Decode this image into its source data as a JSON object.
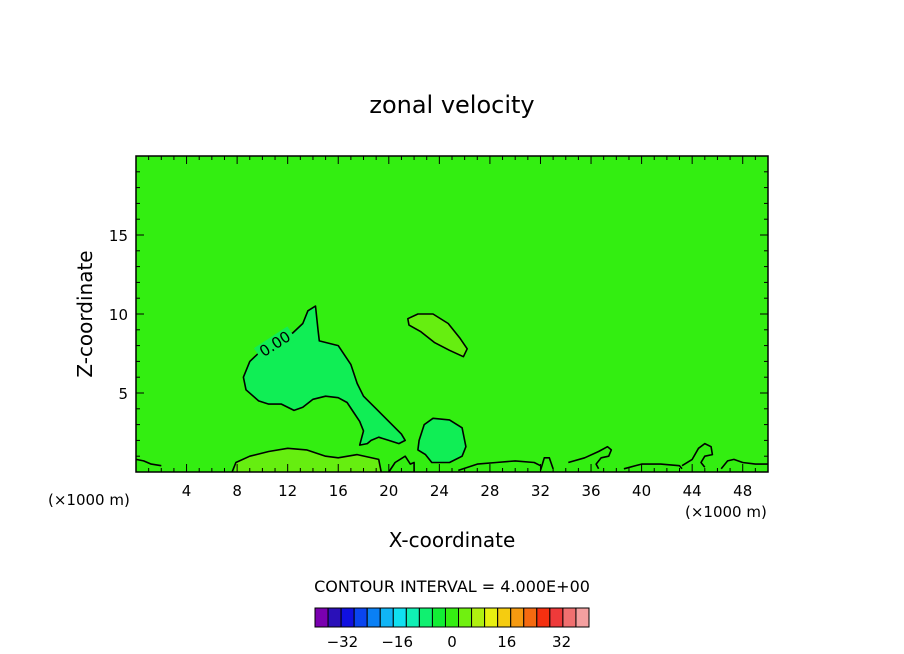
{
  "chart_data": {
    "type": "contour",
    "title": "zonal velocity",
    "xlabel": "X-coordinate",
    "ylabel": "Z-coordinate",
    "x_unit_label": "(×1000 m)",
    "y_unit_label": "(×1000 m)",
    "xlim": [
      0,
      50
    ],
    "ylim": [
      0,
      20
    ],
    "x_ticks": [
      4,
      8,
      12,
      16,
      20,
      24,
      28,
      32,
      36,
      40,
      44,
      48
    ],
    "y_ticks": [
      5,
      10,
      15
    ],
    "contour_label": "0.00",
    "contour_interval_text": "CONTOUR INTERVAL = 4.000E+00",
    "background_color": "#33ee11",
    "colorbar": {
      "tick_labels": [
        "−32",
        "−16",
        "0",
        "16",
        "32"
      ],
      "tick_values": [
        -32,
        -16,
        0,
        16,
        32
      ],
      "min": -40,
      "max": 40,
      "colors": [
        "#7a00b0",
        "#2a10b8",
        "#1010e0",
        "#0a45f0",
        "#0a80f5",
        "#10b5f5",
        "#10e0f0",
        "#10f0b5",
        "#10f070",
        "#12ee35",
        "#35ee12",
        "#70f010",
        "#b0f010",
        "#e8f010",
        "#f5cc10",
        "#f59a10",
        "#f56a10",
        "#f53010",
        "#ee3a3a",
        "#f07070",
        "#f4a0a0"
      ]
    },
    "regions": [
      {
        "name": "negative-lobe-center",
        "value_band": [
          -4,
          0
        ],
        "color": "#10ee55",
        "polygon": [
          [
            9.0,
            7.0
          ],
          [
            9.8,
            7.6
          ],
          [
            11.0,
            8.2
          ],
          [
            12.4,
            8.8
          ],
          [
            13.2,
            9.4
          ],
          [
            13.6,
            10.2
          ],
          [
            14.2,
            10.5
          ],
          [
            14.4,
            9.0
          ],
          [
            14.5,
            8.3
          ],
          [
            16.0,
            8.0
          ],
          [
            17.0,
            6.8
          ],
          [
            17.5,
            5.6
          ],
          [
            18.0,
            4.8
          ],
          [
            19.0,
            4.0
          ],
          [
            20.0,
            3.2
          ],
          [
            21.0,
            2.4
          ],
          [
            21.3,
            2.0
          ],
          [
            20.8,
            1.8
          ],
          [
            20.0,
            2.0
          ],
          [
            19.2,
            2.2
          ],
          [
            18.6,
            2.0
          ],
          [
            18.3,
            1.8
          ],
          [
            17.7,
            1.7
          ],
          [
            18.0,
            2.6
          ],
          [
            17.7,
            3.2
          ],
          [
            17.2,
            3.8
          ],
          [
            16.7,
            4.4
          ],
          [
            16.0,
            4.7
          ],
          [
            15.0,
            4.8
          ],
          [
            14.0,
            4.6
          ],
          [
            13.2,
            4.1
          ],
          [
            12.5,
            3.9
          ],
          [
            11.5,
            4.3
          ],
          [
            10.5,
            4.3
          ],
          [
            9.7,
            4.5
          ],
          [
            8.7,
            5.2
          ],
          [
            8.5,
            6.0
          ]
        ]
      },
      {
        "name": "negative-lobe-small",
        "value_band": [
          -4,
          0
        ],
        "color": "#10ee55",
        "polygon": [
          [
            22.4,
            2.0
          ],
          [
            22.8,
            3.0
          ],
          [
            23.5,
            3.4
          ],
          [
            24.8,
            3.3
          ],
          [
            25.8,
            2.8
          ],
          [
            26.1,
            1.6
          ],
          [
            25.8,
            1.0
          ],
          [
            24.8,
            0.6
          ],
          [
            23.4,
            0.6
          ],
          [
            22.9,
            1.1
          ],
          [
            22.3,
            1.4
          ]
        ]
      },
      {
        "name": "positive-blob",
        "value_band": [
          0,
          4
        ],
        "color": "#66ee10",
        "polygon": [
          [
            21.5,
            9.7
          ],
          [
            22.3,
            10.0
          ],
          [
            23.5,
            10.0
          ],
          [
            24.7,
            9.4
          ],
          [
            25.6,
            8.5
          ],
          [
            26.2,
            7.8
          ],
          [
            25.9,
            7.3
          ],
          [
            24.8,
            7.7
          ],
          [
            23.6,
            8.2
          ],
          [
            22.5,
            8.9
          ],
          [
            21.6,
            9.3
          ]
        ]
      },
      {
        "name": "positive-base",
        "value_band": [
          0,
          4
        ],
        "color": "#66ee10",
        "polygon": [
          [
            7.8,
            0
          ],
          [
            7.9,
            0.6
          ],
          [
            9.0,
            1.0
          ],
          [
            10.5,
            1.3
          ],
          [
            12.0,
            1.5
          ],
          [
            13.5,
            1.4
          ],
          [
            15.0,
            1.0
          ],
          [
            16.0,
            0.9
          ],
          [
            17.5,
            1.1
          ],
          [
            19.2,
            0.8
          ],
          [
            19.4,
            0
          ]
        ]
      }
    ],
    "contours": [
      {
        "level": 0,
        "closed": true,
        "points": [
          [
            9.0,
            7.0
          ],
          [
            9.8,
            7.6
          ],
          [
            11.0,
            8.2
          ],
          [
            12.4,
            8.8
          ],
          [
            13.2,
            9.4
          ],
          [
            13.6,
            10.2
          ],
          [
            14.2,
            10.5
          ],
          [
            14.4,
            9.0
          ],
          [
            14.5,
            8.3
          ],
          [
            16.0,
            8.0
          ],
          [
            17.0,
            6.8
          ],
          [
            17.5,
            5.6
          ],
          [
            18.0,
            4.8
          ],
          [
            19.0,
            4.0
          ],
          [
            20.0,
            3.2
          ],
          [
            21.0,
            2.4
          ],
          [
            21.3,
            2.0
          ],
          [
            20.8,
            1.8
          ],
          [
            20.0,
            2.0
          ],
          [
            19.2,
            2.2
          ],
          [
            18.6,
            2.0
          ],
          [
            18.3,
            1.8
          ],
          [
            17.7,
            1.7
          ],
          [
            18.0,
            2.6
          ],
          [
            17.7,
            3.2
          ],
          [
            17.2,
            3.8
          ],
          [
            16.7,
            4.4
          ],
          [
            16.0,
            4.7
          ],
          [
            15.0,
            4.8
          ],
          [
            14.0,
            4.6
          ],
          [
            13.2,
            4.1
          ],
          [
            12.5,
            3.9
          ],
          [
            11.5,
            4.3
          ],
          [
            10.5,
            4.3
          ],
          [
            9.7,
            4.5
          ],
          [
            8.7,
            5.2
          ],
          [
            8.5,
            6.0
          ]
        ]
      },
      {
        "level": 0,
        "closed": true,
        "points": [
          [
            22.4,
            2.0
          ],
          [
            22.8,
            3.0
          ],
          [
            23.5,
            3.4
          ],
          [
            24.8,
            3.3
          ],
          [
            25.8,
            2.8
          ],
          [
            26.1,
            1.6
          ],
          [
            25.8,
            1.0
          ],
          [
            24.8,
            0.6
          ],
          [
            23.4,
            0.6
          ],
          [
            22.9,
            1.1
          ],
          [
            22.3,
            1.4
          ]
        ]
      },
      {
        "level": 0,
        "closed": true,
        "points": [
          [
            21.5,
            9.7
          ],
          [
            22.3,
            10.0
          ],
          [
            23.5,
            10.0
          ],
          [
            24.7,
            9.4
          ],
          [
            25.6,
            8.5
          ],
          [
            26.2,
            7.8
          ],
          [
            25.9,
            7.3
          ],
          [
            24.8,
            7.7
          ],
          [
            23.6,
            8.2
          ],
          [
            22.5,
            8.9
          ],
          [
            21.6,
            9.3
          ]
        ]
      },
      {
        "level": 0,
        "closed": false,
        "points": [
          [
            0,
            0.8
          ],
          [
            0.6,
            0.7
          ],
          [
            1.2,
            0.5
          ],
          [
            2.0,
            0.4
          ]
        ]
      },
      {
        "level": 0,
        "closed": false,
        "points": [
          [
            7.6,
            0
          ],
          [
            7.9,
            0.6
          ],
          [
            9.0,
            1.0
          ],
          [
            10.5,
            1.3
          ],
          [
            12.0,
            1.5
          ],
          [
            13.5,
            1.4
          ],
          [
            15.0,
            1.0
          ],
          [
            16.0,
            0.9
          ],
          [
            17.5,
            1.1
          ],
          [
            19.2,
            0.8
          ],
          [
            19.4,
            0
          ]
        ]
      },
      {
        "level": 0,
        "closed": false,
        "points": [
          [
            20.0,
            0
          ],
          [
            20.5,
            0.6
          ],
          [
            21.3,
            1.0
          ],
          [
            21.7,
            0.5
          ],
          [
            22.0,
            0.6
          ],
          [
            22.0,
            0
          ]
        ]
      },
      {
        "level": 0,
        "closed": false,
        "points": [
          [
            25.5,
            0.1
          ],
          [
            27.0,
            0.5
          ],
          [
            28.5,
            0.6
          ],
          [
            30.0,
            0.7
          ],
          [
            31.5,
            0.6
          ],
          [
            32.0,
            0.4
          ]
        ]
      },
      {
        "level": 0,
        "closed": false,
        "points": [
          [
            32.0,
            0.1
          ],
          [
            32.3,
            0.9
          ],
          [
            32.7,
            0.9
          ],
          [
            33.0,
            0.2
          ]
        ]
      },
      {
        "level": 0,
        "closed": false,
        "points": [
          [
            34.2,
            0.6
          ],
          [
            35.5,
            0.9
          ],
          [
            36.6,
            1.3
          ],
          [
            37.3,
            1.6
          ],
          [
            37.6,
            1.4
          ],
          [
            37.4,
            1.0
          ],
          [
            36.8,
            0.9
          ],
          [
            36.4,
            0.5
          ],
          [
            36.6,
            0.2
          ]
        ]
      },
      {
        "level": 0,
        "closed": false,
        "points": [
          [
            38.6,
            0.2
          ],
          [
            40.0,
            0.5
          ],
          [
            41.5,
            0.5
          ],
          [
            43.0,
            0.4
          ],
          [
            43.2,
            0.2
          ]
        ]
      },
      {
        "level": 0,
        "closed": false,
        "points": [
          [
            43.2,
            0.4
          ],
          [
            44.0,
            0.8
          ],
          [
            44.5,
            1.5
          ],
          [
            45.0,
            1.8
          ],
          [
            45.5,
            1.6
          ],
          [
            45.6,
            1.1
          ],
          [
            45.0,
            1.0
          ],
          [
            44.7,
            0.6
          ],
          [
            45.0,
            0.3
          ]
        ]
      },
      {
        "level": 0,
        "closed": false,
        "points": [
          [
            46.3,
            0.2
          ],
          [
            46.8,
            0.7
          ],
          [
            47.3,
            0.8
          ],
          [
            48.0,
            0.6
          ],
          [
            49.0,
            0.5
          ],
          [
            50.0,
            0.5
          ]
        ]
      }
    ],
    "contour_label_at": [
      11.0,
      8.1
    ]
  }
}
